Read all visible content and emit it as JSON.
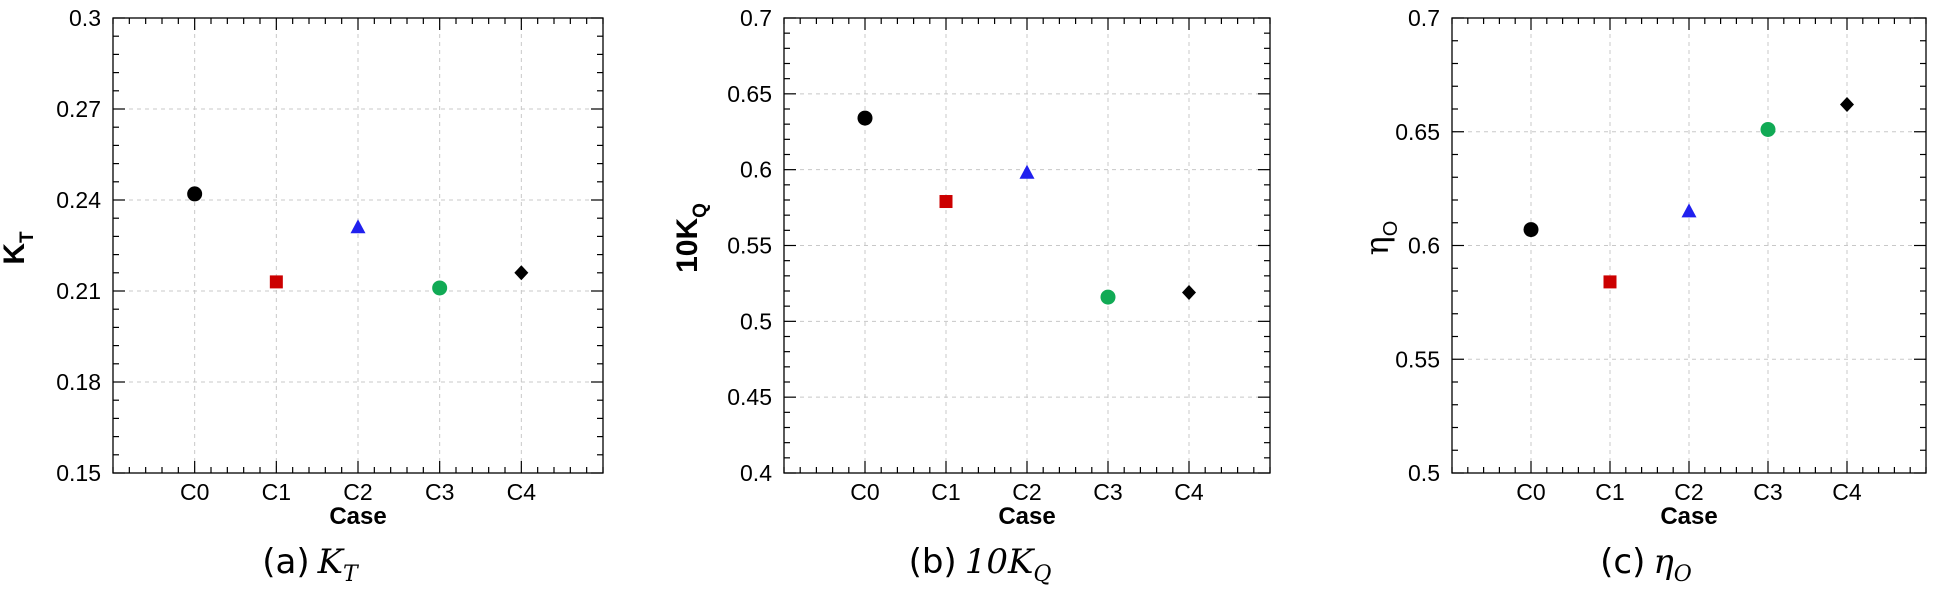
{
  "chart_data": [
    {
      "type": "scatter",
      "caption_prefix": "(a)",
      "caption_math": "K",
      "caption_sub": "T",
      "ylabel_main": "K",
      "ylabel_sub": "T",
      "ylabel_style": "bold",
      "xlabel": "Case",
      "categories": [
        "C0",
        "C1",
        "C2",
        "C3",
        "C4"
      ],
      "values": [
        0.242,
        0.213,
        0.231,
        0.211,
        0.216
      ],
      "ylim": [
        0.15,
        0.3
      ],
      "yticks": [
        "0.15",
        "0.18",
        "0.21",
        "0.24",
        "0.27",
        "0.3"
      ],
      "grid": true
    },
    {
      "type": "scatter",
      "caption_prefix": "(b)",
      "caption_math": "10K",
      "caption_sub": "Q",
      "ylabel_main": "10K",
      "ylabel_sub": "Q",
      "ylabel_style": "bold",
      "xlabel": "Case",
      "categories": [
        "C0",
        "C1",
        "C2",
        "C3",
        "C4"
      ],
      "values": [
        0.634,
        0.579,
        0.598,
        0.516,
        0.519
      ],
      "ylim": [
        0.4,
        0.7
      ],
      "yticks": [
        "0.4",
        "0.45",
        "0.5",
        "0.55",
        "0.6",
        "0.65",
        "0.7"
      ],
      "grid": true
    },
    {
      "type": "scatter",
      "caption_prefix": "(c)",
      "caption_math": "η",
      "caption_sub": "O",
      "ylabel_main": "η",
      "ylabel_sub": "O",
      "ylabel_style": "greek",
      "xlabel": "Case",
      "categories": [
        "C0",
        "C1",
        "C2",
        "C3",
        "C4"
      ],
      "values": [
        0.607,
        0.584,
        0.615,
        0.651,
        0.662
      ],
      "ylim": [
        0.5,
        0.7
      ],
      "yticks": [
        "0.5",
        "0.55",
        "0.6",
        "0.65",
        "0.7"
      ],
      "grid": true
    }
  ],
  "markers": [
    {
      "shape": "circle",
      "color": "#000000"
    },
    {
      "shape": "square",
      "color": "#cc0000"
    },
    {
      "shape": "triangle",
      "color": "#2020ee"
    },
    {
      "shape": "circle",
      "color": "#11aa55"
    },
    {
      "shape": "diamond",
      "color": "#000000"
    }
  ]
}
